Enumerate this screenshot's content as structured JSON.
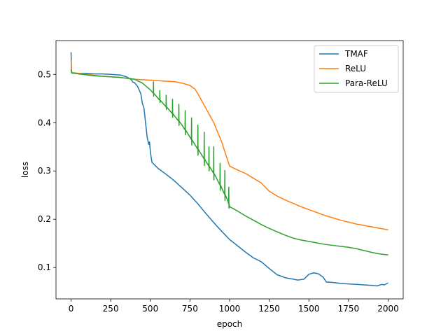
{
  "chart_data": {
    "type": "line",
    "title": "",
    "xlabel": "epoch",
    "ylabel": "loss",
    "xlim": [
      -95,
      2095
    ],
    "ylim": [
      0.035,
      0.57
    ],
    "xticks": [
      0,
      250,
      500,
      750,
      1000,
      1250,
      1500,
      1750,
      2000
    ],
    "yticks": [
      0.1,
      0.2,
      0.3,
      0.4,
      0.5
    ],
    "xtick_labels": [
      "0",
      "250",
      "500",
      "750",
      "1000",
      "1250",
      "1500",
      "1750",
      "2000"
    ],
    "ytick_labels": [
      "0.1",
      "0.2",
      "0.3",
      "0.4",
      "0.5"
    ],
    "grid": false,
    "legend_position": "top-right",
    "series": [
      {
        "name": "TMAF",
        "color": "#1f77b4",
        "points": [
          [
            0,
            0.546
          ],
          [
            3,
            0.505
          ],
          [
            10,
            0.503
          ],
          [
            50,
            0.502
          ],
          [
            100,
            0.502
          ],
          [
            150,
            0.501
          ],
          [
            200,
            0.501
          ],
          [
            250,
            0.5
          ],
          [
            300,
            0.499
          ],
          [
            320,
            0.498
          ],
          [
            350,
            0.495
          ],
          [
            380,
            0.489
          ],
          [
            390,
            0.484
          ],
          [
            400,
            0.483
          ],
          [
            420,
            0.475
          ],
          [
            440,
            0.46
          ],
          [
            450,
            0.44
          ],
          [
            460,
            0.43
          ],
          [
            470,
            0.4
          ],
          [
            480,
            0.37
          ],
          [
            490,
            0.355
          ],
          [
            495,
            0.36
          ],
          [
            500,
            0.34
          ],
          [
            510,
            0.318
          ],
          [
            550,
            0.305
          ],
          [
            600,
            0.293
          ],
          [
            650,
            0.28
          ],
          [
            700,
            0.265
          ],
          [
            750,
            0.25
          ],
          [
            800,
            0.232
          ],
          [
            850,
            0.212
          ],
          [
            900,
            0.193
          ],
          [
            950,
            0.175
          ],
          [
            1000,
            0.158
          ],
          [
            1050,
            0.145
          ],
          [
            1100,
            0.132
          ],
          [
            1150,
            0.12
          ],
          [
            1200,
            0.112
          ],
          [
            1250,
            0.098
          ],
          [
            1300,
            0.085
          ],
          [
            1350,
            0.079
          ],
          [
            1400,
            0.076
          ],
          [
            1430,
            0.074
          ],
          [
            1470,
            0.076
          ],
          [
            1500,
            0.086
          ],
          [
            1530,
            0.089
          ],
          [
            1560,
            0.087
          ],
          [
            1590,
            0.08
          ],
          [
            1610,
            0.07
          ],
          [
            1650,
            0.069
          ],
          [
            1700,
            0.067
          ],
          [
            1750,
            0.066
          ],
          [
            1800,
            0.065
          ],
          [
            1850,
            0.064
          ],
          [
            1900,
            0.063
          ],
          [
            1930,
            0.062
          ],
          [
            1960,
            0.065
          ],
          [
            1975,
            0.064
          ],
          [
            2000,
            0.068
          ]
        ]
      },
      {
        "name": "ReLU",
        "color": "#ff7f0e",
        "points": [
          [
            0,
            0.53
          ],
          [
            3,
            0.504
          ],
          [
            50,
            0.502
          ],
          [
            100,
            0.5
          ],
          [
            150,
            0.498
          ],
          [
            200,
            0.496
          ],
          [
            250,
            0.495
          ],
          [
            300,
            0.494
          ],
          [
            350,
            0.492
          ],
          [
            400,
            0.49
          ],
          [
            450,
            0.489
          ],
          [
            500,
            0.488
          ],
          [
            550,
            0.487
          ],
          [
            600,
            0.486
          ],
          [
            650,
            0.485
          ],
          [
            700,
            0.482
          ],
          [
            750,
            0.477
          ],
          [
            780,
            0.47
          ],
          [
            800,
            0.46
          ],
          [
            850,
            0.43
          ],
          [
            900,
            0.4
          ],
          [
            950,
            0.36
          ],
          [
            980,
            0.33
          ],
          [
            1000,
            0.31
          ],
          [
            1050,
            0.302
          ],
          [
            1100,
            0.295
          ],
          [
            1150,
            0.285
          ],
          [
            1200,
            0.275
          ],
          [
            1250,
            0.258
          ],
          [
            1300,
            0.248
          ],
          [
            1350,
            0.24
          ],
          [
            1400,
            0.233
          ],
          [
            1450,
            0.226
          ],
          [
            1500,
            0.22
          ],
          [
            1550,
            0.214
          ],
          [
            1600,
            0.208
          ],
          [
            1650,
            0.203
          ],
          [
            1700,
            0.198
          ],
          [
            1750,
            0.194
          ],
          [
            1800,
            0.19
          ],
          [
            1850,
            0.187
          ],
          [
            1900,
            0.184
          ],
          [
            1950,
            0.181
          ],
          [
            2000,
            0.178
          ]
        ]
      },
      {
        "name": "Para-ReLU",
        "color": "#2ca02c",
        "points": [
          [
            0,
            0.51
          ],
          [
            3,
            0.503
          ],
          [
            50,
            0.501
          ],
          [
            100,
            0.499
          ],
          [
            150,
            0.497
          ],
          [
            200,
            0.496
          ],
          [
            250,
            0.495
          ],
          [
            300,
            0.494
          ],
          [
            350,
            0.492
          ],
          [
            400,
            0.49
          ],
          [
            450,
            0.482
          ],
          [
            500,
            0.468
          ],
          [
            550,
            0.45
          ],
          [
            600,
            0.433
          ],
          [
            650,
            0.415
          ],
          [
            700,
            0.395
          ],
          [
            750,
            0.37
          ],
          [
            800,
            0.345
          ],
          [
            850,
            0.32
          ],
          [
            900,
            0.295
          ],
          [
            950,
            0.265
          ],
          [
            990,
            0.237
          ],
          [
            1000,
            0.226
          ],
          [
            1050,
            0.217
          ],
          [
            1100,
            0.207
          ],
          [
            1150,
            0.198
          ],
          [
            1200,
            0.189
          ],
          [
            1250,
            0.181
          ],
          [
            1300,
            0.174
          ],
          [
            1350,
            0.167
          ],
          [
            1400,
            0.161
          ],
          [
            1450,
            0.157
          ],
          [
            1500,
            0.154
          ],
          [
            1550,
            0.151
          ],
          [
            1600,
            0.148
          ],
          [
            1650,
            0.146
          ],
          [
            1700,
            0.144
          ],
          [
            1750,
            0.142
          ],
          [
            1800,
            0.139
          ],
          [
            1850,
            0.135
          ],
          [
            1900,
            0.131
          ],
          [
            1950,
            0.128
          ],
          [
            2000,
            0.126
          ]
        ],
        "oscillations": [
          [
            520,
            0.024
          ],
          [
            560,
            0.02
          ],
          [
            600,
            0.024
          ],
          [
            640,
            0.03
          ],
          [
            680,
            0.035
          ],
          [
            720,
            0.04
          ],
          [
            760,
            0.045
          ],
          [
            800,
            0.05
          ],
          [
            840,
            0.055
          ],
          [
            870,
            0.04
          ],
          [
            900,
            0.055
          ],
          [
            940,
            0.045
          ],
          [
            970,
            0.05
          ],
          [
            995,
            0.035
          ]
        ]
      }
    ]
  }
}
